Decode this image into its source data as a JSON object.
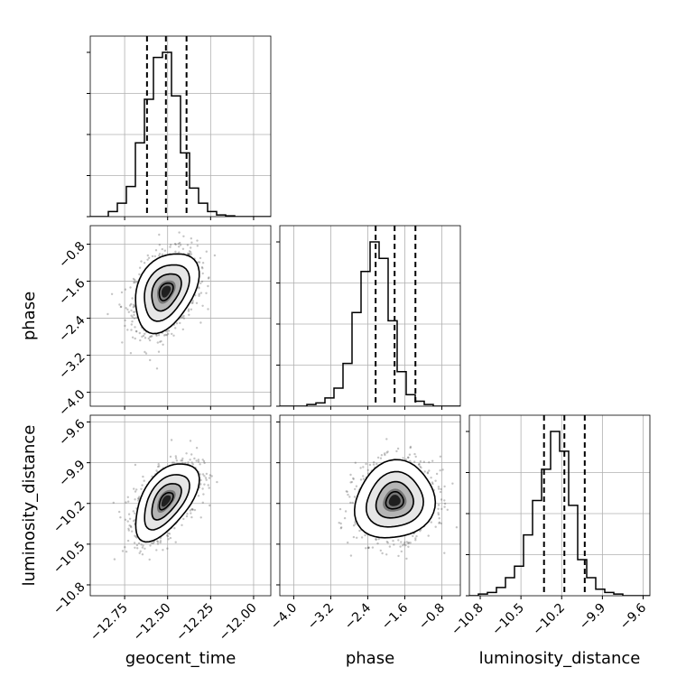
{
  "chart_data": {
    "type": "corner",
    "grid": true,
    "colors": {
      "hist": "#000000",
      "grid": "#b0b0b0",
      "density": "#000000",
      "points": "#555555"
    },
    "parameters": [
      {
        "key": "geocent_time",
        "label": "geocent_time",
        "range": [
          -12.95,
          -11.9
        ],
        "ticks": [
          -12.75,
          -12.5,
          -12.25,
          -12.0
        ],
        "tick_labels": [
          "−12.75",
          "−12.50",
          "−12.25",
          "−12.00"
        ],
        "quantiles": [
          -12.62,
          -12.51,
          -12.39
        ],
        "mean": -12.51,
        "sd": 0.09,
        "hist": {
          "edges_start": -12.95,
          "bin_width": 0.0525,
          "counts": [
            0,
            0,
            3,
            8,
            18,
            44,
            70,
            95,
            98,
            72,
            38,
            17,
            8,
            3,
            1,
            0.5,
            0,
            0,
            0,
            0
          ]
        }
      },
      {
        "key": "phase",
        "label": "phase",
        "range": [
          -4.3,
          -0.4
        ],
        "ticks": [
          -4.0,
          -3.2,
          -2.4,
          -1.6,
          -0.8
        ],
        "tick_labels": [
          "−4.0",
          "−3.2",
          "−2.4",
          "−1.6",
          "−0.8"
        ],
        "quantiles": [
          -2.23,
          -1.82,
          -1.37
        ],
        "mean": -1.82,
        "sd": 0.42,
        "hist": {
          "edges_start": -4.3,
          "bin_width": 0.195,
          "counts": [
            0,
            0,
            0,
            1,
            2,
            5,
            11,
            26,
            57,
            82,
            100,
            90,
            52,
            21,
            7,
            3,
            1,
            0,
            0,
            0
          ]
        }
      },
      {
        "key": "luminosity_distance",
        "label": "luminosity_distance",
        "range": [
          -10.88,
          -9.55
        ],
        "ticks": [
          -10.8,
          -10.5,
          -10.2,
          -9.9,
          -9.6
        ],
        "tick_labels": [
          "−10.8",
          "−10.5",
          "−10.2",
          "−9.9",
          "−9.6"
        ],
        "quantiles": [
          -10.33,
          -10.18,
          -10.03
        ],
        "mean": -10.18,
        "sd": 0.14,
        "hist": {
          "edges_start": -10.88,
          "bin_width": 0.0665,
          "counts": [
            0,
            1,
            2,
            5,
            11,
            18,
            37,
            58,
            77,
            100,
            88,
            55,
            22,
            11,
            4,
            2,
            1,
            0,
            0,
            0
          ]
        }
      }
    ],
    "correlations": {
      "1,0": 0.35,
      "2,0": 0.55,
      "2,1": 0.1
    }
  }
}
